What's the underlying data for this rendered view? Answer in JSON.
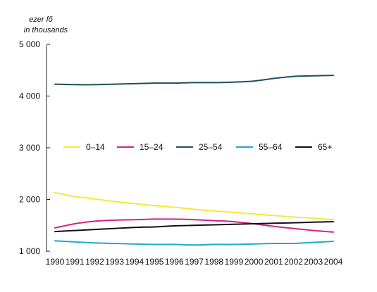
{
  "chart_data": {
    "type": "line",
    "ylabel_hu": "ezer fő",
    "ylabel_en": "in thousands",
    "x": [
      1990,
      1991,
      1992,
      1993,
      1994,
      1995,
      1996,
      1997,
      1998,
      1999,
      2000,
      2001,
      2002,
      2003,
      2004
    ],
    "x_tick_labels": [
      "1990",
      "1991",
      "1992",
      "1993",
      "1994",
      "1995",
      "1996",
      "1997",
      "1998",
      "1999",
      "2000",
      "2001",
      "2002",
      "2003",
      "2004"
    ],
    "y_ticks": [
      1000,
      2000,
      3000,
      4000,
      5000
    ],
    "y_tick_labels": [
      "1 000",
      "2 000",
      "3 000",
      "4 000",
      "5 000"
    ],
    "ylim": [
      1000,
      5000
    ],
    "grid": false,
    "legend_position": "middle",
    "series": [
      {
        "name": "0–14",
        "color": "#f2ea3a",
        "values": [
          2130,
          2060,
          2010,
          1960,
          1920,
          1880,
          1850,
          1810,
          1780,
          1750,
          1720,
          1690,
          1660,
          1640,
          1610
        ]
      },
      {
        "name": "15–24",
        "color": "#d42288",
        "values": [
          1450,
          1530,
          1580,
          1600,
          1610,
          1620,
          1620,
          1610,
          1590,
          1570,
          1530,
          1480,
          1440,
          1400,
          1370
        ]
      },
      {
        "name": "25–54",
        "color": "#1b4f5e",
        "values": [
          4230,
          4220,
          4220,
          4230,
          4240,
          4250,
          4250,
          4260,
          4260,
          4270,
          4290,
          4340,
          4380,
          4390,
          4400
        ]
      },
      {
        "name": "55–64",
        "color": "#1ea7d8",
        "values": [
          1200,
          1180,
          1160,
          1150,
          1140,
          1130,
          1130,
          1120,
          1130,
          1130,
          1140,
          1150,
          1150,
          1170,
          1190
        ]
      },
      {
        "name": "65+",
        "color": "#111111",
        "values": [
          1380,
          1400,
          1420,
          1440,
          1460,
          1470,
          1490,
          1500,
          1510,
          1520,
          1530,
          1540,
          1550,
          1560,
          1570
        ]
      }
    ]
  }
}
